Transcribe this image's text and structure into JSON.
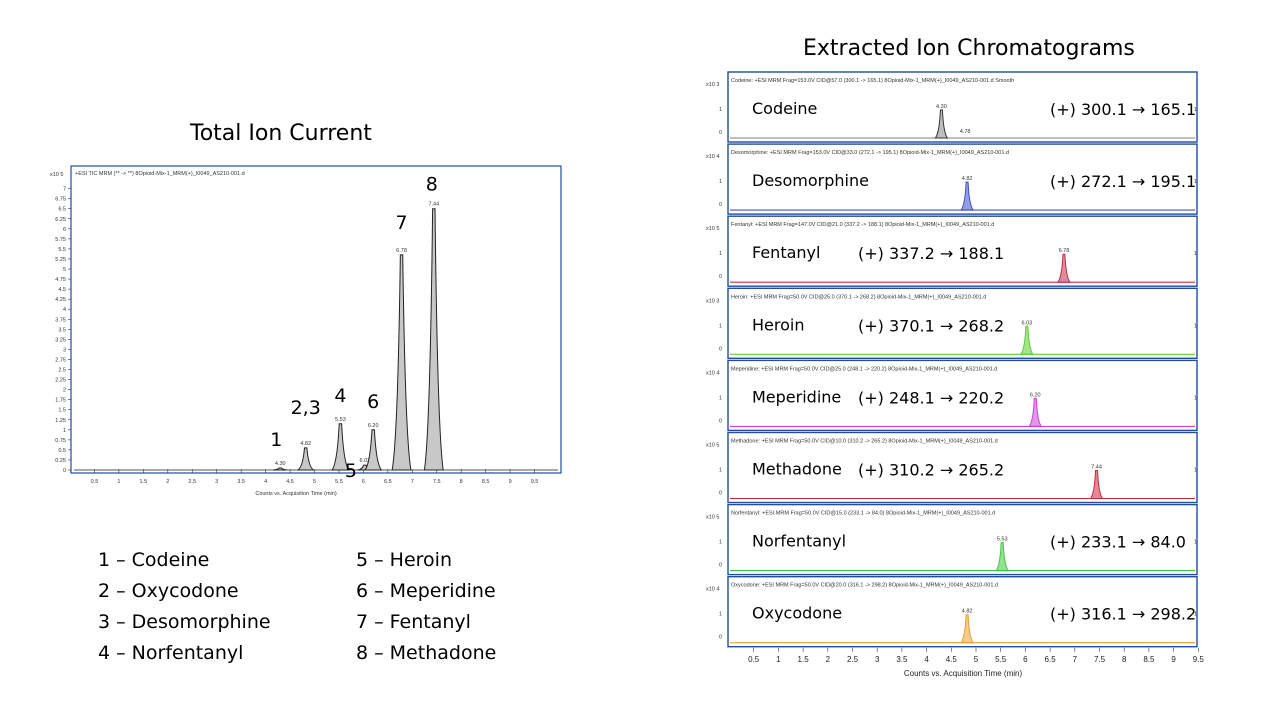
{
  "titles": {
    "tic": "Total Ion Current",
    "eic": "Extracted Ion Chromatograms"
  },
  "legend": {
    "left": [
      "1 – Codeine",
      "2 – Oxycodone",
      "3 – Desomorphine",
      "4 – Norfentanyl"
    ],
    "right": [
      "5 – Heroin",
      "6 – Meperidine",
      "7 – Fentanyl",
      "8 – Methadone"
    ]
  },
  "tic_header": "+ESI TIC MRM (** -> **) 8Opioid-Mix-1_MRM(+)_I0049_AS210-001.d",
  "tic_exponent": "x10 5",
  "colors": {
    "axis": "#1f4e9c",
    "tic_fill": "#c8c8c8",
    "codeine": "#7f7f7f",
    "desomorphine": "#3c50c8",
    "fentanyl": "#c0304a",
    "heroin": "#5ccf2e",
    "meperidine": "#d23fd2",
    "methadone": "#c8283c",
    "norfentanyl": "#3cc83c",
    "oxycodone": "#e8a030"
  },
  "chart_data": [
    {
      "type": "line",
      "title": "Total Ion Current",
      "xlabel": "Counts vs. Acquisition Time (min)",
      "ylabel": "",
      "xlim": [
        0,
        10
      ],
      "ylim": [
        0,
        7.2
      ],
      "x_ticks": [
        "0.5",
        "1",
        "1.5",
        "2",
        "2.5",
        "3",
        "3.5",
        "4",
        "4.5",
        "5",
        "5.5",
        "6",
        "6.5",
        "7",
        "7.5",
        "8",
        "8.5",
        "9",
        "9.5"
      ],
      "y_ticks": [
        "0",
        "0.25",
        "0.5",
        "0.75",
        "1",
        "1.25",
        "1.5",
        "1.75",
        "2",
        "2.25",
        "2.5",
        "2.75",
        "3",
        "3.25",
        "3.5",
        "3.75",
        "4",
        "4.25",
        "4.5",
        "4.75",
        "5",
        "5.25",
        "5.5",
        "5.75",
        "6",
        "6.25",
        "6.5",
        "6.75",
        "7"
      ],
      "peaks": [
        {
          "label": "1",
          "rt": 4.3,
          "rt_label": "4.30",
          "height": 0.05
        },
        {
          "label": "2,3",
          "rt": 4.82,
          "rt_label": "4.82",
          "height": 0.55
        },
        {
          "label": "4",
          "rt": 5.53,
          "rt_label": "5.53",
          "height": 1.15
        },
        {
          "label": "5",
          "rt": 6.03,
          "rt_label": "6.03",
          "height": 0.12
        },
        {
          "label": "6",
          "rt": 6.2,
          "rt_label": "6.20",
          "height": 1.0
        },
        {
          "label": "7",
          "rt": 6.78,
          "rt_label": "6.78",
          "height": 5.35
        },
        {
          "label": "8",
          "rt": 7.44,
          "rt_label": "7.44",
          "height": 6.5
        }
      ]
    },
    {
      "type": "line",
      "title": "Extracted Ion Chromatograms",
      "xlabel": "Counts vs. Acquisition Time (min)",
      "xlim": [
        0,
        10
      ],
      "x_ticks": [
        "0.5",
        "1",
        "1.5",
        "2",
        "2.5",
        "3",
        "3.5",
        "4",
        "4.5",
        "5",
        "5.5",
        "6",
        "6.5",
        "7",
        "7.5",
        "8",
        "8.5",
        "9",
        "9.5"
      ],
      "series": [
        {
          "name": "Codeine",
          "exp": "x10 3",
          "header": "Codeine: +ESI MRM Frag=153.0V CID@57.0 (300.1 -> 165.1) 8Opioid-Mix-1_MRM(+)_I0049_AS210-001.d  Smooth",
          "transition": "(+) 300.1 → 165.1",
          "rt": 4.3,
          "rt_label": "4.30",
          "extra_label": "4.78",
          "color_key": "codeine",
          "filled": true
        },
        {
          "name": "Desomorphine",
          "exp": "x10 4",
          "header": "Desomorphine: +ESI MRM Frag=153.0V CID@33.0 (272.1 -> 195.1) 8Opioid-Mix-1_MRM(+)_I0049_AS210-001.d",
          "transition": "(+) 272.1 → 195.1",
          "rt": 4.82,
          "rt_label": "4.82",
          "color_key": "desomorphine"
        },
        {
          "name": "Fentanyl",
          "exp": "x10 5",
          "header": "Fentanyl: +ESI MRM Frag=147.0V CID@21.0 (337.2 -> 188.1) 8Opioid-Mix-1_MRM(+)_I0049_AS210-001.d",
          "transition": "(+) 337.2 → 188.1",
          "rt": 6.78,
          "rt_label": "6.78",
          "color_key": "fentanyl"
        },
        {
          "name": "Heroin",
          "exp": "x10 3",
          "header": "Heroin: +ESI MRM Frag=50.0V CID@25.0 (370.1 -> 268.2) 8Opioid-Mix-1_MRM(+)_I0049_AS210-001.d",
          "transition": "(+) 370.1 → 268.2",
          "rt": 6.03,
          "rt_label": "6.03",
          "color_key": "heroin"
        },
        {
          "name": "Meperidine",
          "exp": "x10 4",
          "header": "Meperidine: +ESI MRM Frag=50.0V CID@25.0 (248.1 -> 220.2) 8Opioid-Mix-1_MRM(+)_I0049_AS210-001.d",
          "transition": "(+) 248.1 → 220.2",
          "rt": 6.2,
          "rt_label": "6.20",
          "color_key": "meperidine"
        },
        {
          "name": "Methadone",
          "exp": "x10 5",
          "header": "Methadone: +ESI MRM Frag=50.0V CID@10.0 (310.2 -> 265.2) 8Opioid-Mix-1_MRM(+)_I0049_AS210-001.d",
          "transition": "(+) 310.2 → 265.2",
          "rt": 7.44,
          "rt_label": "7.44",
          "color_key": "methadone"
        },
        {
          "name": "Norfentanyl",
          "exp": "x10 5",
          "header": "Norfentanyl: +ESI MRM Frag=50.0V CID@15.0 (233.1 -> 84.0) 8Opioid-Mix-1_MRM(+)_I0049_AS210-001.d",
          "transition": "(+) 233.1 → 84.0",
          "rt": 5.53,
          "rt_label": "5.53",
          "color_key": "norfentanyl"
        },
        {
          "name": "Oxycodone",
          "exp": "x10 4",
          "header": "Oxycodone: +ESI MRM Frag=50.0V CID@20.0 (316.1 -> 298.2) 8Opioid-Mix-1_MRM(+)_I0049_AS210-001.d",
          "transition": "(+) 316.1 → 298.2",
          "rt": 4.82,
          "rt_label": "4.82",
          "color_key": "oxycodone"
        }
      ]
    }
  ]
}
